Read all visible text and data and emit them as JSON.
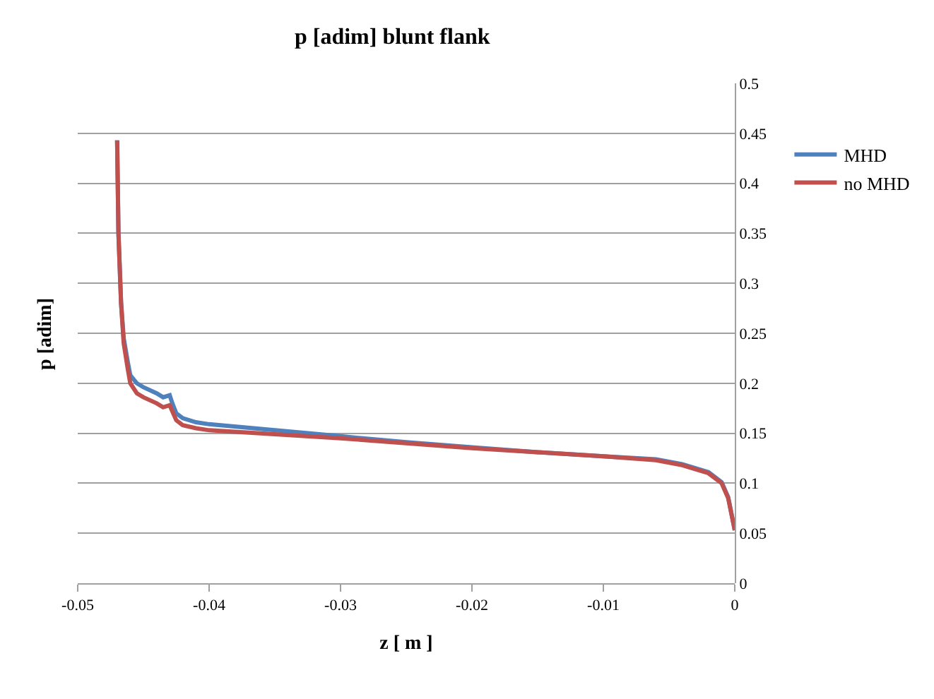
{
  "chart_data": {
    "type": "line",
    "title": "p [adim] blunt flank",
    "xlabel": "z [ m ]",
    "ylabel": "p [adim]",
    "xlim": [
      -0.05,
      0
    ],
    "xticks": [
      -0.05,
      -0.04,
      -0.03,
      -0.02,
      -0.01,
      0
    ],
    "ylim": [
      0,
      0.5
    ],
    "yticks": [
      0,
      0.05,
      0.1,
      0.15,
      0.2,
      0.25,
      0.3,
      0.35,
      0.4,
      0.45,
      0.5
    ],
    "grid": "y",
    "legend": "right",
    "marker": "none",
    "line_style": "solid",
    "series": [
      {
        "name": "MHD",
        "color": "#4f81bd",
        "x": [
          -0.047,
          -0.0469,
          -0.0467,
          -0.0465,
          -0.0462,
          -0.046,
          -0.0455,
          -0.045,
          -0.044,
          -0.0435,
          -0.043,
          -0.0428,
          -0.0425,
          -0.042,
          -0.041,
          -0.04,
          -0.035,
          -0.03,
          -0.025,
          -0.02,
          -0.015,
          -0.01,
          -0.006,
          -0.004,
          -0.002,
          -0.001,
          -0.0005,
          0
        ],
        "values": [
          0.443,
          0.35,
          0.28,
          0.245,
          0.222,
          0.208,
          0.2,
          0.196,
          0.19,
          0.186,
          0.188,
          0.18,
          0.17,
          0.165,
          0.161,
          0.159,
          0.153,
          0.147,
          0.141,
          0.136,
          0.131,
          0.127,
          0.124,
          0.119,
          0.111,
          0.101,
          0.086,
          0.053
        ]
      },
      {
        "name": "no MHD",
        "color": "#c0504d",
        "x": [
          -0.047,
          -0.0469,
          -0.0467,
          -0.0465,
          -0.0462,
          -0.046,
          -0.0455,
          -0.045,
          -0.044,
          -0.0435,
          -0.043,
          -0.0428,
          -0.0425,
          -0.042,
          -0.041,
          -0.04,
          -0.035,
          -0.03,
          -0.025,
          -0.02,
          -0.015,
          -0.01,
          -0.006,
          -0.004,
          -0.002,
          -0.001,
          -0.0005,
          0
        ],
        "values": [
          0.443,
          0.35,
          0.28,
          0.24,
          0.215,
          0.2,
          0.19,
          0.186,
          0.18,
          0.176,
          0.178,
          0.172,
          0.163,
          0.158,
          0.155,
          0.153,
          0.149,
          0.145,
          0.14,
          0.135,
          0.131,
          0.127,
          0.123,
          0.118,
          0.11,
          0.1,
          0.085,
          0.053
        ]
      }
    ]
  }
}
